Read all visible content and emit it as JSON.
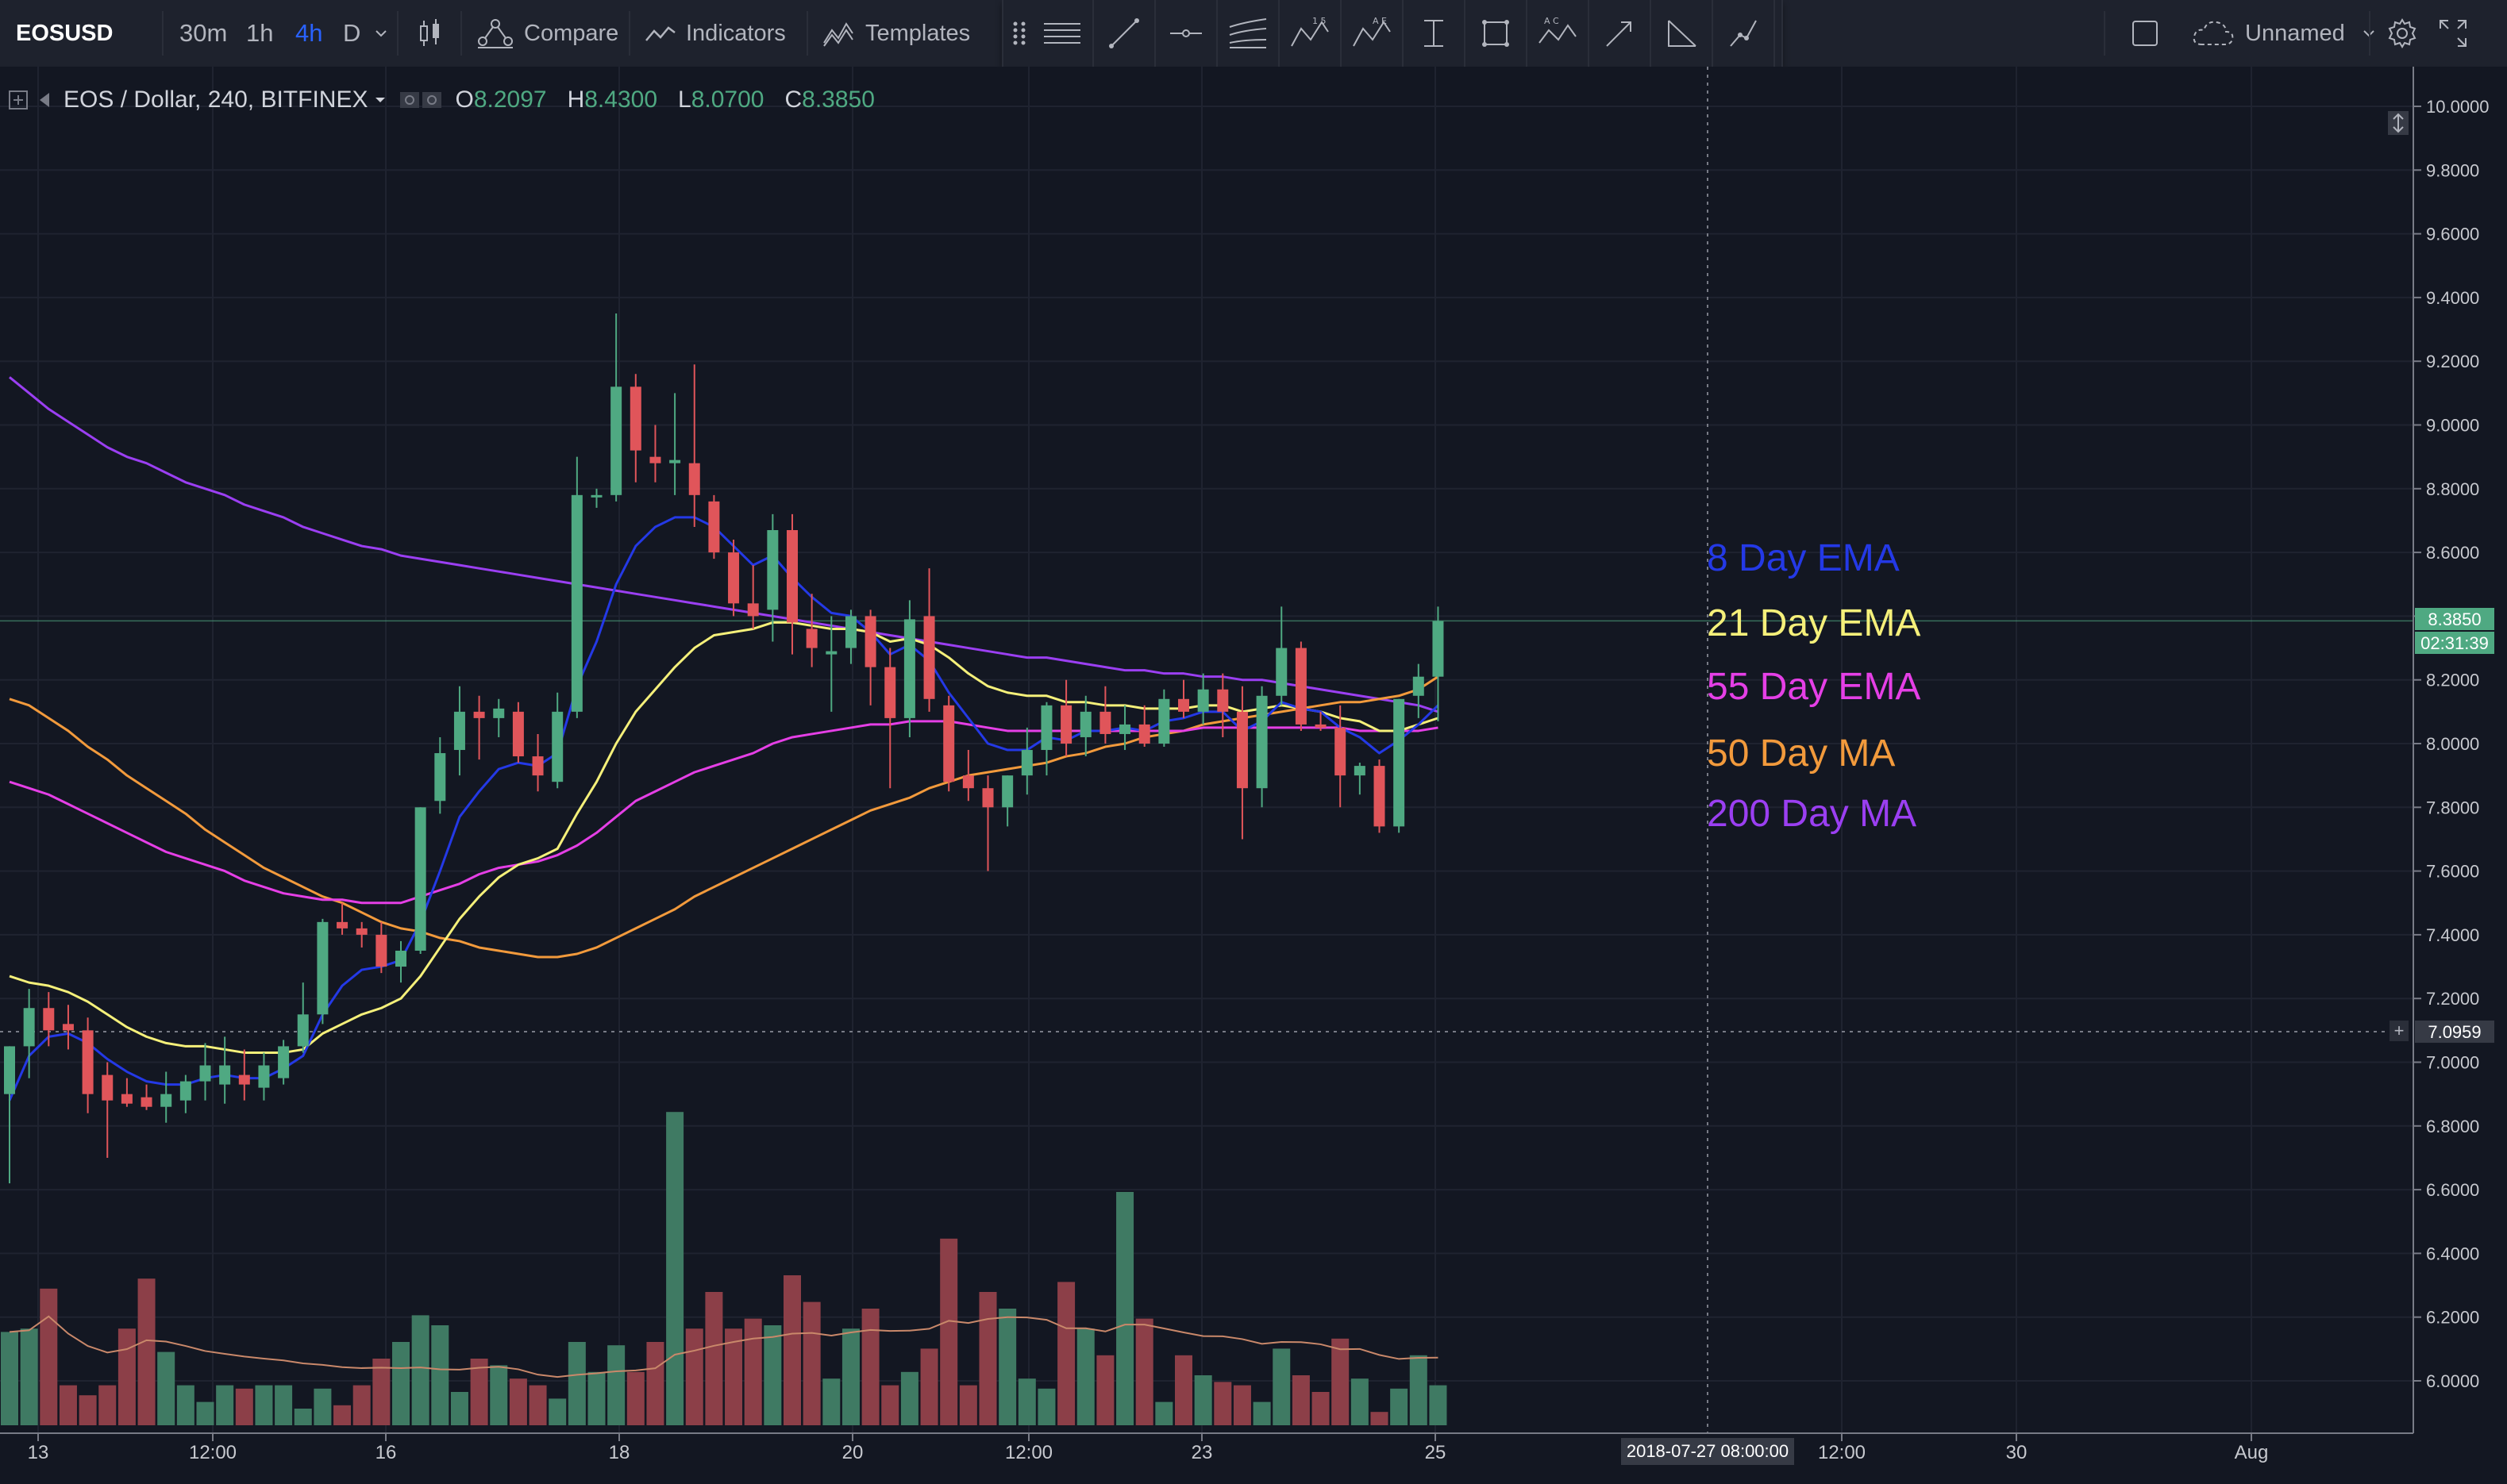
{
  "toolbar": {
    "symbol": "EOSUSD",
    "intervals": [
      "30m",
      "1h",
      "4h",
      "D"
    ],
    "active_interval": "4h",
    "compare_label": "Compare",
    "indicators_label": "Indicators",
    "templates_label": "Templates",
    "layout_name": "Unnamed",
    "icons": [
      "candles-icon",
      "compare-icon",
      "indicators-icon",
      "templates-icon",
      "grip-icon",
      "fib-channel-icon",
      "trend-line-icon",
      "horizontal-ray-icon",
      "pitchfork-icon",
      "abcd-wave-icon",
      "elliott-wave-icon",
      "cursor-text-icon",
      "rectangle-icon",
      "abc-pattern-icon",
      "arrow-icon",
      "angle-icon",
      "path-icon",
      "fullscreen-box-icon",
      "cloud-icon",
      "gear-icon",
      "expand-icon"
    ]
  },
  "legend": {
    "title": "EOS / Dollar, 240, BITFINEX",
    "open_label": "O",
    "open": "8.2097",
    "high_label": "H",
    "high": "8.4300",
    "low_label": "L",
    "low": "8.0700",
    "close_label": "C",
    "close": "8.3850"
  },
  "indicator_labels": [
    {
      "text": "8 Day EMA",
      "color": "#2439e6"
    },
    {
      "text": "21 Day EMA",
      "color": "#f5f07a"
    },
    {
      "text": "55 Day EMA",
      "color": "#e53fe6"
    },
    {
      "text": "50 Day MA",
      "color": "#f29a3c"
    },
    {
      "text": "200 Day MA",
      "color": "#9b3ff2"
    }
  ],
  "price_axis": {
    "ticks": [
      "10.0000",
      "9.8000",
      "9.6000",
      "9.4000",
      "9.2000",
      "9.0000",
      "8.8000",
      "8.6000",
      "8.4000",
      "8.2000",
      "8.0000",
      "7.8000",
      "7.6000",
      "7.4000",
      "7.2000",
      "7.0000",
      "6.8000",
      "6.6000",
      "6.4000",
      "6.2000",
      "6.0000"
    ],
    "last_price": "8.3850",
    "countdown": "02:31:39",
    "crosshair_price": "7.0959",
    "crosshair_plus": "+"
  },
  "time_axis": {
    "ticks": [
      "13",
      "12:00",
      "16",
      "18",
      "20",
      "12:00",
      "23",
      "25",
      "12:00",
      "30",
      "Aug"
    ],
    "crosshair_time": "2018-07-27 08:00:00"
  },
  "colors": {
    "up": "#4fa982",
    "down": "#e0555a",
    "vol_up": "#3f7a63",
    "vol_down": "#8c3f48",
    "ema8": "#2439e6",
    "ema21": "#f5f07a",
    "ema55": "#e53fe6",
    "ma50": "#f29a3c",
    "ma200": "#9b3ff2",
    "vol_ma": "#c9886a"
  },
  "chart_data": {
    "type": "candlestick",
    "symbol": "EOS / Dollar",
    "ylim": [
      5.9,
      10.05
    ],
    "candles": [
      {
        "o": 6.9,
        "h": 7.05,
        "l": 6.62,
        "c": 7.05
      },
      {
        "o": 7.05,
        "h": 7.23,
        "l": 6.95,
        "c": 7.17
      },
      {
        "o": 7.17,
        "h": 7.22,
        "l": 7.05,
        "c": 7.1
      },
      {
        "o": 7.12,
        "h": 7.18,
        "l": 7.04,
        "c": 7.1
      },
      {
        "o": 7.1,
        "h": 7.14,
        "l": 6.84,
        "c": 6.9
      },
      {
        "o": 6.96,
        "h": 7.0,
        "l": 6.7,
        "c": 6.88
      },
      {
        "o": 6.9,
        "h": 6.95,
        "l": 6.86,
        "c": 6.87
      },
      {
        "o": 6.89,
        "h": 6.93,
        "l": 6.85,
        "c": 6.86
      },
      {
        "o": 6.86,
        "h": 6.97,
        "l": 6.81,
        "c": 6.9
      },
      {
        "o": 6.88,
        "h": 6.96,
        "l": 6.84,
        "c": 6.94
      },
      {
        "o": 6.94,
        "h": 7.06,
        "l": 6.88,
        "c": 6.99
      },
      {
        "o": 6.93,
        "h": 7.08,
        "l": 6.87,
        "c": 6.99
      },
      {
        "o": 6.96,
        "h": 7.04,
        "l": 6.88,
        "c": 6.93
      },
      {
        "o": 6.92,
        "h": 7.03,
        "l": 6.88,
        "c": 6.99
      },
      {
        "o": 6.95,
        "h": 7.07,
        "l": 6.93,
        "c": 7.05
      },
      {
        "o": 7.05,
        "h": 7.25,
        "l": 7.03,
        "c": 7.15
      },
      {
        "o": 7.15,
        "h": 7.45,
        "l": 7.12,
        "c": 7.44
      },
      {
        "o": 7.44,
        "h": 7.5,
        "l": 7.4,
        "c": 7.42
      },
      {
        "o": 7.42,
        "h": 7.44,
        "l": 7.36,
        "c": 7.4
      },
      {
        "o": 7.4,
        "h": 7.44,
        "l": 7.28,
        "c": 7.3
      },
      {
        "o": 7.3,
        "h": 7.38,
        "l": 7.25,
        "c": 7.35
      },
      {
        "o": 7.35,
        "h": 7.8,
        "l": 7.34,
        "c": 7.8
      },
      {
        "o": 7.82,
        "h": 8.02,
        "l": 7.78,
        "c": 7.97
      },
      {
        "o": 7.98,
        "h": 8.18,
        "l": 7.9,
        "c": 8.1
      },
      {
        "o": 8.1,
        "h": 8.15,
        "l": 7.95,
        "c": 8.08
      },
      {
        "o": 8.08,
        "h": 8.14,
        "l": 8.02,
        "c": 8.11
      },
      {
        "o": 8.1,
        "h": 8.13,
        "l": 7.94,
        "c": 7.96
      },
      {
        "o": 7.96,
        "h": 8.03,
        "l": 7.85,
        "c": 7.9
      },
      {
        "o": 7.88,
        "h": 8.16,
        "l": 7.86,
        "c": 8.1
      },
      {
        "o": 8.1,
        "h": 8.9,
        "l": 8.08,
        "c": 8.78
      },
      {
        "o": 8.78,
        "h": 8.8,
        "l": 8.74,
        "c": 8.78
      },
      {
        "o": 8.78,
        "h": 9.35,
        "l": 8.76,
        "c": 9.12
      },
      {
        "o": 9.12,
        "h": 9.16,
        "l": 8.82,
        "c": 8.92
      },
      {
        "o": 8.9,
        "h": 9.0,
        "l": 8.82,
        "c": 8.88
      },
      {
        "o": 8.88,
        "h": 9.1,
        "l": 8.78,
        "c": 8.89
      },
      {
        "o": 8.88,
        "h": 9.19,
        "l": 8.68,
        "c": 8.78
      },
      {
        "o": 8.76,
        "h": 8.78,
        "l": 8.58,
        "c": 8.6
      },
      {
        "o": 8.6,
        "h": 8.64,
        "l": 8.4,
        "c": 8.44
      },
      {
        "o": 8.44,
        "h": 8.56,
        "l": 8.36,
        "c": 8.4
      },
      {
        "o": 8.42,
        "h": 8.72,
        "l": 8.32,
        "c": 8.67
      },
      {
        "o": 8.67,
        "h": 8.72,
        "l": 8.28,
        "c": 8.38
      },
      {
        "o": 8.36,
        "h": 8.47,
        "l": 8.24,
        "c": 8.3
      },
      {
        "o": 8.28,
        "h": 8.4,
        "l": 8.1,
        "c": 8.29
      },
      {
        "o": 8.3,
        "h": 8.42,
        "l": 8.25,
        "c": 8.4
      },
      {
        "o": 8.4,
        "h": 8.42,
        "l": 8.12,
        "c": 8.24
      },
      {
        "o": 8.24,
        "h": 8.3,
        "l": 7.86,
        "c": 8.08
      },
      {
        "o": 8.08,
        "h": 8.45,
        "l": 8.02,
        "c": 8.39
      },
      {
        "o": 8.4,
        "h": 8.55,
        "l": 8.1,
        "c": 8.14
      },
      {
        "o": 8.12,
        "h": 8.15,
        "l": 7.85,
        "c": 7.88
      },
      {
        "o": 7.9,
        "h": 7.98,
        "l": 7.82,
        "c": 7.86
      },
      {
        "o": 7.86,
        "h": 7.9,
        "l": 7.6,
        "c": 7.8
      },
      {
        "o": 7.8,
        "h": 7.9,
        "l": 7.74,
        "c": 7.9
      },
      {
        "o": 7.9,
        "h": 8.05,
        "l": 7.84,
        "c": 7.98
      },
      {
        "o": 7.98,
        "h": 8.13,
        "l": 7.9,
        "c": 8.12
      },
      {
        "o": 8.12,
        "h": 8.2,
        "l": 7.96,
        "c": 8.0
      },
      {
        "o": 8.02,
        "h": 8.15,
        "l": 7.96,
        "c": 8.1
      },
      {
        "o": 8.1,
        "h": 8.18,
        "l": 8.0,
        "c": 8.03
      },
      {
        "o": 8.03,
        "h": 8.12,
        "l": 7.98,
        "c": 8.06
      },
      {
        "o": 8.06,
        "h": 8.12,
        "l": 7.99,
        "c": 8.0
      },
      {
        "o": 8.0,
        "h": 8.17,
        "l": 7.99,
        "c": 8.14
      },
      {
        "o": 8.14,
        "h": 8.2,
        "l": 8.08,
        "c": 8.1
      },
      {
        "o": 8.1,
        "h": 8.22,
        "l": 8.06,
        "c": 8.17
      },
      {
        "o": 8.17,
        "h": 8.22,
        "l": 8.02,
        "c": 8.1
      },
      {
        "o": 8.1,
        "h": 8.18,
        "l": 7.7,
        "c": 7.86
      },
      {
        "o": 7.86,
        "h": 8.18,
        "l": 7.8,
        "c": 8.15
      },
      {
        "o": 8.15,
        "h": 8.43,
        "l": 8.12,
        "c": 8.3
      },
      {
        "o": 8.3,
        "h": 8.32,
        "l": 8.04,
        "c": 8.06
      },
      {
        "o": 8.06,
        "h": 8.1,
        "l": 8.04,
        "c": 8.05
      },
      {
        "o": 8.05,
        "h": 8.12,
        "l": 7.8,
        "c": 7.9
      },
      {
        "o": 7.9,
        "h": 7.94,
        "l": 7.84,
        "c": 7.93
      },
      {
        "o": 7.93,
        "h": 7.95,
        "l": 7.72,
        "c": 7.74
      },
      {
        "o": 7.74,
        "h": 8.14,
        "l": 7.72,
        "c": 8.14
      },
      {
        "o": 8.15,
        "h": 8.25,
        "l": 8.08,
        "c": 8.21
      },
      {
        "o": 8.21,
        "h": 8.43,
        "l": 8.07,
        "c": 8.385
      }
    ],
    "volume_relative": [
      0.28,
      0.29,
      0.41,
      0.12,
      0.09,
      0.12,
      0.29,
      0.44,
      0.22,
      0.12,
      0.07,
      0.12,
      0.11,
      0.12,
      0.12,
      0.05,
      0.11,
      0.06,
      0.12,
      0.2,
      0.25,
      0.33,
      0.3,
      0.1,
      0.2,
      0.18,
      0.14,
      0.12,
      0.08,
      0.25,
      0.16,
      0.24,
      0.16,
      0.25,
      0.94,
      0.29,
      0.4,
      0.29,
      0.32,
      0.3,
      0.45,
      0.37,
      0.14,
      0.29,
      0.35,
      0.12,
      0.16,
      0.23,
      0.56,
      0.12,
      0.4,
      0.35,
      0.14,
      0.11,
      0.43,
      0.29,
      0.21,
      0.7,
      0.32,
      0.07,
      0.21,
      0.15,
      0.13,
      0.12,
      0.07,
      0.23,
      0.15,
      0.1,
      0.26,
      0.14,
      0.04,
      0.11,
      0.21,
      0.12
    ],
    "lines": {
      "ema8": [
        6.88,
        7.02,
        7.08,
        7.09,
        7.06,
        7.01,
        6.97,
        6.94,
        6.93,
        6.93,
        6.95,
        6.96,
        6.95,
        6.95,
        6.98,
        7.02,
        7.15,
        7.24,
        7.29,
        7.3,
        7.32,
        7.44,
        7.6,
        7.77,
        7.85,
        7.92,
        7.94,
        7.93,
        7.97,
        8.18,
        8.32,
        8.5,
        8.62,
        8.68,
        8.71,
        8.71,
        8.68,
        8.62,
        8.56,
        8.59,
        8.52,
        8.46,
        8.41,
        8.4,
        8.35,
        8.28,
        8.31,
        8.26,
        8.16,
        8.08,
        8.0,
        7.98,
        7.98,
        8.02,
        8.01,
        8.04,
        8.04,
        8.05,
        8.04,
        8.07,
        8.08,
        8.1,
        8.1,
        8.04,
        8.07,
        8.13,
        8.11,
        8.1,
        8.05,
        8.02,
        7.97,
        8.01,
        8.06,
        8.12
      ],
      "ema21": [
        7.27,
        7.25,
        7.24,
        7.22,
        7.19,
        7.15,
        7.11,
        7.08,
        7.06,
        7.05,
        7.05,
        7.04,
        7.03,
        7.03,
        7.03,
        7.04,
        7.09,
        7.12,
        7.15,
        7.17,
        7.2,
        7.27,
        7.36,
        7.45,
        7.52,
        7.58,
        7.62,
        7.64,
        7.67,
        7.78,
        7.88,
        8.0,
        8.1,
        8.17,
        8.24,
        8.3,
        8.34,
        8.35,
        8.36,
        8.38,
        8.38,
        8.37,
        8.36,
        8.36,
        8.35,
        8.32,
        8.33,
        8.31,
        8.27,
        8.22,
        8.18,
        8.16,
        8.15,
        8.15,
        8.13,
        8.13,
        8.12,
        8.12,
        8.11,
        8.11,
        8.11,
        8.12,
        8.12,
        8.1,
        8.11,
        8.12,
        8.11,
        8.1,
        8.08,
        8.07,
        8.04,
        8.04,
        8.06,
        8.08
      ],
      "ema55": [
        7.88,
        7.86,
        7.84,
        7.81,
        7.78,
        7.75,
        7.72,
        7.69,
        7.66,
        7.64,
        7.62,
        7.6,
        7.57,
        7.55,
        7.53,
        7.52,
        7.51,
        7.51,
        7.5,
        7.5,
        7.5,
        7.52,
        7.54,
        7.56,
        7.59,
        7.61,
        7.62,
        7.63,
        7.65,
        7.68,
        7.72,
        7.77,
        7.82,
        7.85,
        7.88,
        7.91,
        7.93,
        7.95,
        7.97,
        8.0,
        8.02,
        8.03,
        8.04,
        8.05,
        8.06,
        8.06,
        8.07,
        8.07,
        8.07,
        8.06,
        8.05,
        8.04,
        8.04,
        8.04,
        8.04,
        8.04,
        8.04,
        8.04,
        8.04,
        8.04,
        8.04,
        8.05,
        8.05,
        8.05,
        8.05,
        8.05,
        8.05,
        8.05,
        8.05,
        8.04,
        8.04,
        8.04,
        8.04,
        8.05
      ],
      "ma50": [
        8.14,
        8.12,
        8.08,
        8.04,
        7.99,
        7.95,
        7.9,
        7.86,
        7.82,
        7.78,
        7.73,
        7.69,
        7.65,
        7.61,
        7.58,
        7.55,
        7.52,
        7.5,
        7.47,
        7.44,
        7.42,
        7.41,
        7.39,
        7.38,
        7.36,
        7.35,
        7.34,
        7.33,
        7.33,
        7.34,
        7.36,
        7.39,
        7.42,
        7.45,
        7.48,
        7.52,
        7.55,
        7.58,
        7.61,
        7.64,
        7.67,
        7.7,
        7.73,
        7.76,
        7.79,
        7.81,
        7.83,
        7.86,
        7.88,
        7.9,
        7.91,
        7.92,
        7.93,
        7.94,
        7.96,
        7.97,
        7.99,
        8.0,
        8.02,
        8.03,
        8.04,
        8.06,
        8.07,
        8.08,
        8.09,
        8.1,
        8.11,
        8.12,
        8.13,
        8.13,
        8.14,
        8.15,
        8.17,
        8.21
      ],
      "ma200": [
        9.15,
        9.1,
        9.05,
        9.01,
        8.97,
        8.93,
        8.9,
        8.88,
        8.85,
        8.82,
        8.8,
        8.78,
        8.75,
        8.73,
        8.71,
        8.68,
        8.66,
        8.64,
        8.62,
        8.61,
        8.59,
        8.58,
        8.57,
        8.56,
        8.55,
        8.54,
        8.53,
        8.52,
        8.51,
        8.5,
        8.49,
        8.48,
        8.47,
        8.46,
        8.45,
        8.44,
        8.43,
        8.42,
        8.41,
        8.4,
        8.39,
        8.38,
        8.37,
        8.36,
        8.35,
        8.34,
        8.33,
        8.32,
        8.31,
        8.3,
        8.29,
        8.28,
        8.27,
        8.27,
        8.26,
        8.25,
        8.24,
        8.23,
        8.23,
        8.22,
        8.22,
        8.21,
        8.21,
        8.2,
        8.2,
        8.19,
        8.18,
        8.17,
        8.16,
        8.15,
        8.14,
        8.13,
        8.12,
        8.1
      ]
    }
  }
}
